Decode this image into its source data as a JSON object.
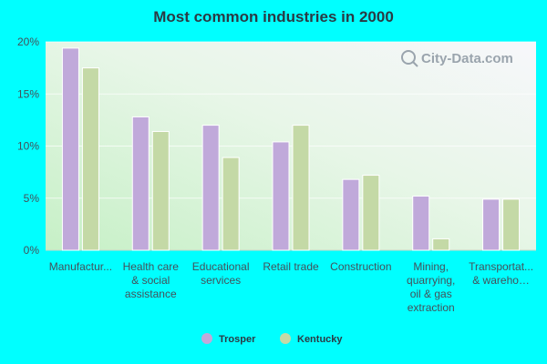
{
  "chart_data": {
    "type": "bar",
    "title": "Most common industries in 2000",
    "categories": [
      [
        "Manufactur..."
      ],
      [
        "Health care",
        "& social",
        "assistance"
      ],
      [
        "Educational",
        "services"
      ],
      [
        "Retail trade"
      ],
      [
        "Construction"
      ],
      [
        "Mining,",
        "quarrying,",
        "oil & gas",
        "extraction"
      ],
      [
        "Transportat...",
        "& wareho…"
      ]
    ],
    "series": [
      {
        "name": "Trosper",
        "color": "#c0a9da",
        "values": [
          19.4,
          12.8,
          12.0,
          10.4,
          6.8,
          5.2,
          4.9
        ]
      },
      {
        "name": "Kentucky",
        "color": "#c4d9a6",
        "values": [
          17.5,
          11.4,
          8.9,
          12.0,
          7.2,
          1.1,
          4.9
        ]
      }
    ],
    "yticks": [
      "0%",
      "5%",
      "10%",
      "15%",
      "20%"
    ],
    "ylim": [
      0,
      20
    ],
    "legend_position": "bottom-center",
    "grid": true
  },
  "watermark": "City-Data.com"
}
